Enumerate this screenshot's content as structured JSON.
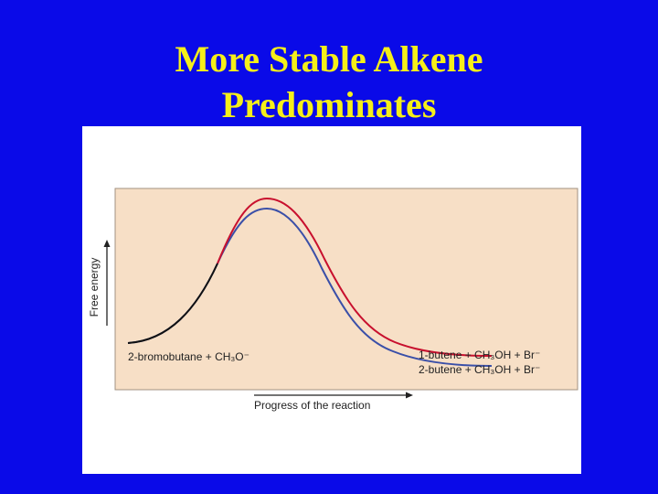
{
  "slide": {
    "title_line1": "More Stable Alkene",
    "title_line2": "Predominates",
    "title_color": "#f5ef1a",
    "background_color": "#0a0ae8"
  },
  "diagram": {
    "y_axis_label": "Free energy",
    "x_axis_label": "Progress of the reaction",
    "reactant_label": "2-bromobutane + CH₃O⁻",
    "product_1_label": "1-butene + CH₃OH + Br⁻",
    "product_2_label": "2-butene + CH₃OH + Br⁻",
    "curve_1_color": "#c8102e",
    "curve_2_color": "#3a4fa8",
    "plot_background": "#f7dfc6"
  }
}
